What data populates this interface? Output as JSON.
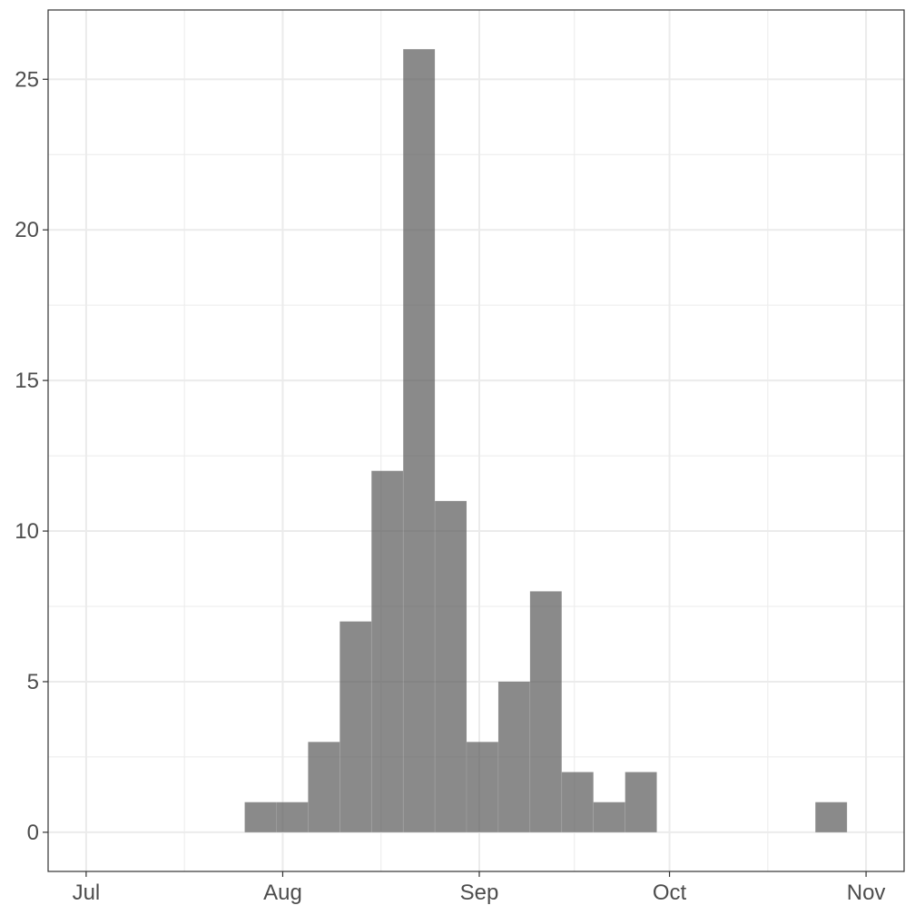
{
  "chart_data": {
    "type": "bar",
    "subtype": "histogram",
    "title": "",
    "xlabel": "",
    "ylabel": "",
    "x_tick_labels": [
      "Jul",
      "Aug",
      "Sep",
      "Oct",
      "Nov"
    ],
    "x_tick_positions_days": [
      0,
      31,
      62,
      92,
      123
    ],
    "x_range_days": [
      -6,
      129
    ],
    "y_tick_labels": [
      "0",
      "5",
      "10",
      "15",
      "20",
      "25"
    ],
    "y_ticks": [
      0,
      5,
      10,
      15,
      20,
      25
    ],
    "ylim": [
      -1.3,
      27.3
    ],
    "bin_width_days": 5,
    "bins_start_days": [
      25,
      30,
      35,
      40,
      45,
      50,
      55,
      60,
      65,
      70,
      75,
      80,
      85,
      90,
      95,
      100,
      105,
      110,
      115
    ],
    "values": [
      1,
      1,
      3,
      7,
      12,
      26,
      11,
      3,
      5,
      8,
      2,
      1,
      2,
      0,
      0,
      0,
      0,
      0,
      1
    ],
    "fill_color": "#595959",
    "fill_opacity": 0.7,
    "grid": true,
    "legend": "none"
  }
}
